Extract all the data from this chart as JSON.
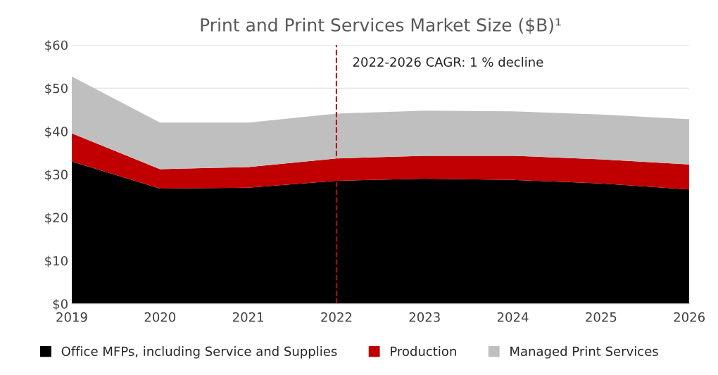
{
  "chart_data": {
    "type": "area",
    "stacked": true,
    "title": "Print and Print Services Market Size ($B)¹",
    "x": [
      2019,
      2020,
      2021,
      2022,
      2023,
      2024,
      2025,
      2026
    ],
    "series": [
      {
        "name": "Office MFPs, including Service and Supplies",
        "color": "#000000",
        "values": [
          33.0,
          26.7,
          26.9,
          28.5,
          29.0,
          28.7,
          27.9,
          26.5
        ]
      },
      {
        "name": "Production",
        "color": "#c00000",
        "values": [
          6.5,
          4.5,
          4.8,
          5.2,
          5.3,
          5.6,
          5.6,
          5.8
        ]
      },
      {
        "name": "Managed Print Services",
        "color": "#bfbfbf",
        "values": [
          13.2,
          10.8,
          10.3,
          10.4,
          10.5,
          10.3,
          10.4,
          10.5
        ]
      }
    ],
    "xlim": [
      2019,
      2026
    ],
    "xticks": [
      2019,
      2020,
      2021,
      2022,
      2023,
      2024,
      2025,
      2026
    ],
    "ylim": [
      0,
      60
    ],
    "yticks": [
      {
        "value": 0,
        "label": "$0"
      },
      {
        "value": 10,
        "label": "$10"
      },
      {
        "value": 20,
        "label": "$20"
      },
      {
        "value": 30,
        "label": "$30"
      },
      {
        "value": 40,
        "label": "$40"
      },
      {
        "value": 50,
        "label": "$50"
      },
      {
        "value": 60,
        "label": "$60"
      }
    ],
    "ref_lines": [
      {
        "axis": "x",
        "value": 2022,
        "label": "2022-2026 CAGR: 1 % decline",
        "color": "#c00000",
        "line_style": "dashed"
      }
    ],
    "grid": "y",
    "legend": "bottom"
  }
}
